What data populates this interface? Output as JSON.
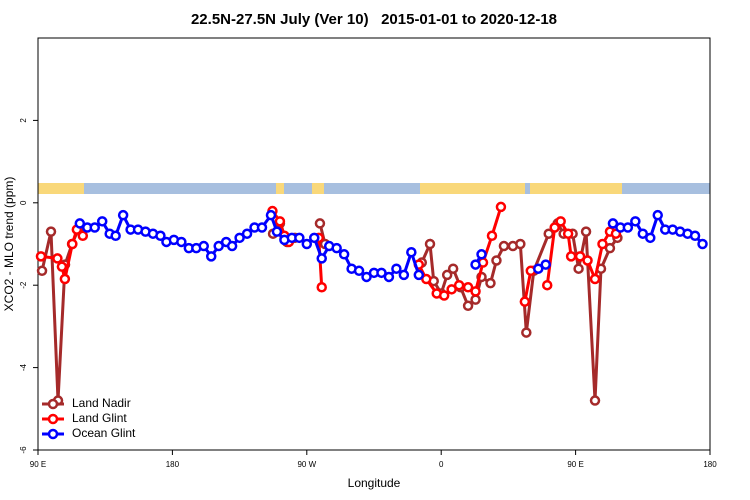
{
  "chart_data": {
    "type": "line",
    "title": "22.5N-27.5N July (Ver 10)   2015-01-01 to 2020-12-18",
    "x_label": "Longitude",
    "y_label": "XCO2 - MLO trend (ppm)",
    "xlim": [
      90,
      540
    ],
    "ylim": [
      -6,
      4
    ],
    "xticks": [
      {
        "value": 90,
        "label": "90 E"
      },
      {
        "value": 180,
        "label": "180"
      },
      {
        "value": 270,
        "label": "90 W"
      },
      {
        "value": 360,
        "label": "0"
      },
      {
        "value": 450,
        "label": "90 E"
      },
      {
        "value": 540,
        "label": "180"
      }
    ],
    "yticks": [
      -6,
      -4,
      -2,
      0,
      2
    ],
    "legend": "bottom-left",
    "series": [
      {
        "name": "Land Nadir",
        "color": "#a52a2a",
        "x": [
          92.7,
          98.7,
          103.4,
          108.1,
          112.8,
          117.5,
          180,
          247.4,
          252,
          256.7,
          262.1,
          270,
          278.8,
          282.2,
          320,
          347,
          352.5,
          355,
          360,
          364,
          368,
          373,
          378,
          383,
          387,
          393,
          397,
          402,
          408,
          413,
          417,
          422,
          432,
          438,
          442,
          448,
          452,
          457,
          463,
          467,
          473,
          478
        ],
        "values": [
          -1.65,
          -0.7,
          -4.8,
          -1.5,
          -1.0,
          -0.6,
          null,
          -0.75,
          -0.5,
          -0.95,
          -0.85,
          null,
          -0.5,
          -1.0,
          null,
          -1.45,
          -1.0,
          -1.9,
          -2.2,
          -1.75,
          -1.6,
          -2.05,
          -2.5,
          -2.35,
          -1.8,
          -1.95,
          -1.4,
          -1.05,
          -1.05,
          -1.0,
          -3.15,
          -1.65,
          -0.75,
          -0.5,
          -0.75,
          -0.75,
          -1.6,
          -0.7,
          -4.8,
          -1.6,
          -1.1,
          -0.85
        ]
      },
      {
        "name": "Land Glint",
        "color": "#ff0000",
        "x": [
          92,
          103,
          106,
          108,
          113,
          116,
          120,
          200,
          247,
          252,
          255,
          258,
          265,
          278,
          280,
          320,
          345,
          350,
          357,
          362,
          367,
          372,
          378,
          383,
          388,
          394,
          400,
          410,
          416,
          420,
          425,
          431,
          436,
          440,
          445,
          447,
          453,
          458,
          463,
          468,
          473,
          477
        ],
        "values": [
          -1.3,
          -1.35,
          -1.55,
          -1.85,
          -1.0,
          -0.65,
          -0.8,
          null,
          -0.2,
          -0.45,
          -0.8,
          -0.95,
          null,
          -0.85,
          -2.05,
          null,
          -1.5,
          -1.85,
          -2.2,
          -2.25,
          -2.1,
          -2.0,
          -2.05,
          -2.15,
          -1.45,
          -0.8,
          -0.1,
          null,
          -2.4,
          -1.65,
          null,
          -2.0,
          -0.6,
          -0.45,
          -0.75,
          -1.3,
          -1.3,
          -1.4,
          -1.85,
          -1.0,
          -0.7,
          -0.75
        ]
      },
      {
        "name": "Ocean Glint",
        "color": "#0000ff",
        "x": [
          118,
          123,
          128,
          133,
          138,
          142,
          147,
          152,
          157,
          162,
          167,
          172,
          176,
          181,
          186,
          191,
          196,
          201,
          206,
          211,
          216,
          220,
          225,
          230,
          235,
          240,
          246,
          250,
          255,
          260,
          265,
          270,
          275,
          280,
          285,
          290,
          295,
          300,
          305,
          310,
          315,
          320,
          325,
          330,
          335,
          340,
          345,
          370,
          383,
          387,
          410,
          425,
          430,
          460,
          475,
          480,
          485,
          490,
          495,
          500,
          505,
          510,
          515,
          520,
          525,
          530,
          535
        ],
        "values": [
          -0.5,
          -0.6,
          -0.6,
          -0.45,
          -0.75,
          -0.8,
          -0.3,
          -0.65,
          -0.65,
          -0.7,
          -0.75,
          -0.8,
          -0.95,
          -0.9,
          -0.95,
          -1.1,
          -1.1,
          -1.05,
          -1.3,
          -1.05,
          -0.95,
          -1.05,
          -0.85,
          -0.75,
          -0.6,
          -0.6,
          -0.3,
          -0.7,
          -0.9,
          -0.85,
          -0.85,
          -1.0,
          -0.85,
          -1.35,
          -1.05,
          -1.1,
          -1.25,
          -1.6,
          -1.65,
          -1.8,
          -1.7,
          -1.7,
          -1.8,
          -1.6,
          -1.75,
          -1.2,
          -1.75,
          null,
          -1.5,
          -1.25,
          null,
          -1.6,
          -1.5,
          null,
          -0.5,
          -0.6,
          -0.6,
          -0.45,
          -0.75,
          -0.85,
          -0.3,
          -0.65,
          -0.65,
          -0.7,
          -0.75,
          -0.8,
          -1.0
        ]
      }
    ]
  }
}
